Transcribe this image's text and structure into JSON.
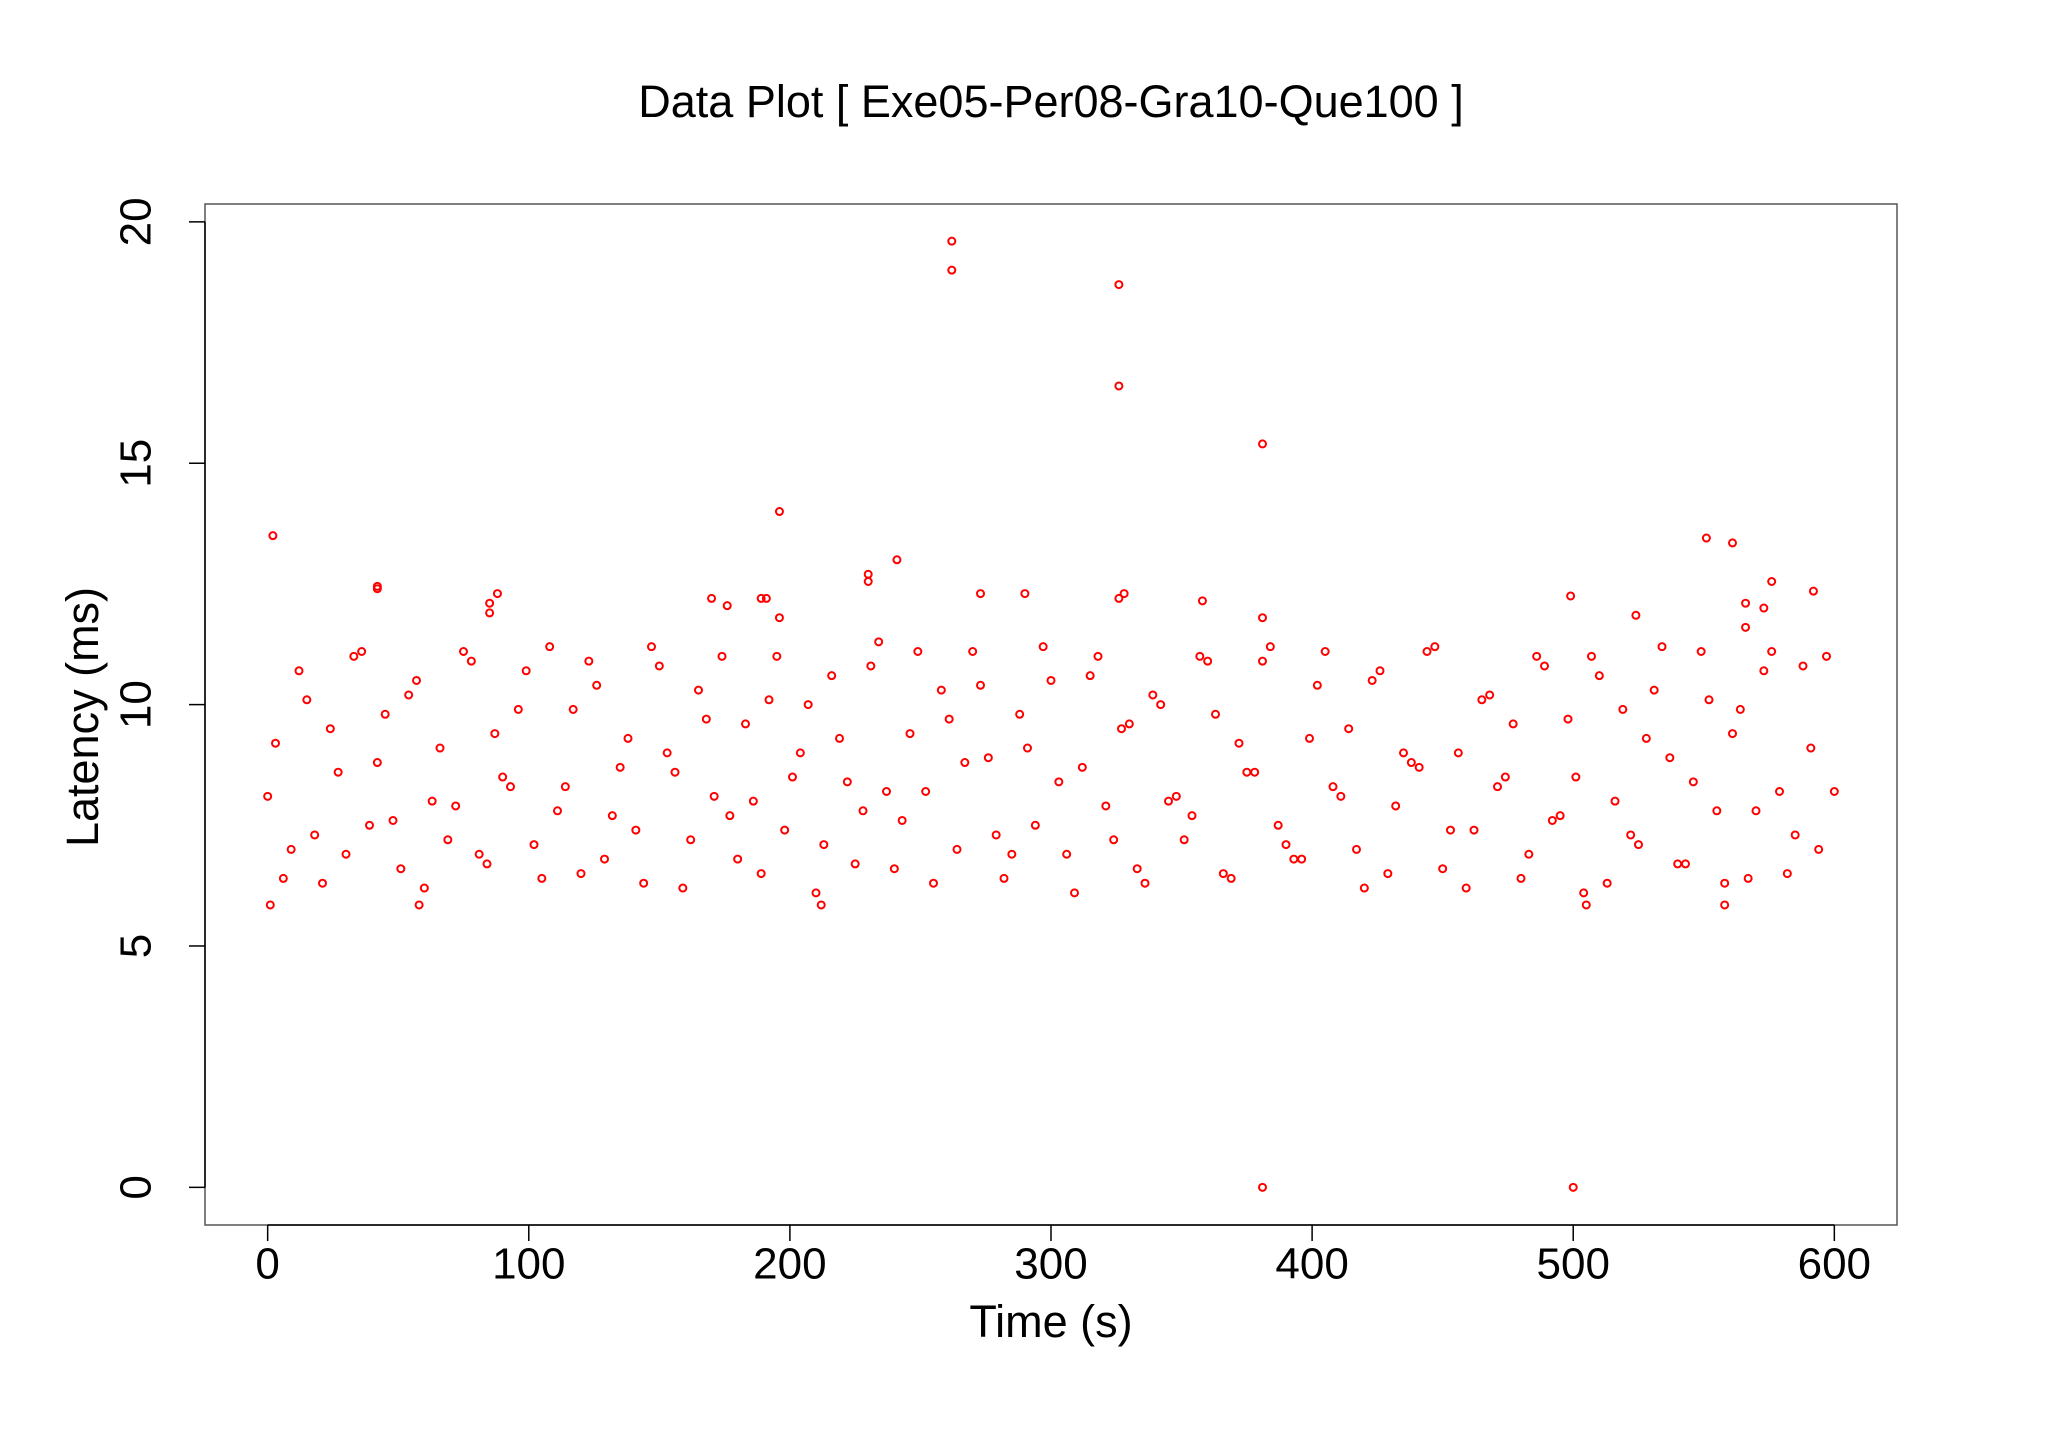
{
  "chart_data": {
    "type": "scatter",
    "title": "Data Plot [ Exe05-Per08-Gra10-Que100 ]",
    "x_label": "Time (s)",
    "y_label": "Latency (ms)",
    "color": "#ff0000",
    "xlim": [
      -24,
      624
    ],
    "ylim": [
      -0.78,
      20.37
    ],
    "xticks": [
      0,
      100,
      200,
      300,
      400,
      500,
      600
    ],
    "yticks": [
      0,
      5,
      10,
      15,
      20
    ],
    "x": [
      0,
      6,
      12,
      18,
      24,
      30,
      36,
      42,
      48,
      54,
      60,
      66,
      72,
      78,
      84,
      90,
      96,
      102,
      108,
      114,
      120,
      126,
      132,
      138,
      144,
      150,
      156,
      162,
      168,
      174,
      180,
      186,
      192,
      198,
      204,
      210,
      216,
      222,
      228,
      234,
      240,
      246,
      252,
      258,
      264,
      270,
      276,
      282,
      288,
      294,
      300,
      306,
      312,
      318,
      324,
      330,
      336,
      342,
      348,
      354,
      360,
      366,
      372,
      378,
      384,
      390,
      396,
      402,
      408,
      414,
      420,
      426,
      432,
      438,
      444,
      450,
      456,
      462,
      468,
      474,
      480,
      486,
      492,
      498,
      504,
      510,
      516,
      522,
      528,
      534,
      540,
      546,
      552,
      558,
      564,
      570,
      576,
      582,
      588,
      594,
      600,
      3,
      9,
      15,
      21,
      27,
      33,
      39,
      45,
      51,
      57,
      63,
      69,
      75,
      81,
      87,
      93,
      99,
      105,
      111,
      117,
      123,
      129,
      135,
      141,
      147,
      153,
      159,
      165,
      171,
      177,
      183,
      189,
      195,
      201,
      207,
      213,
      219,
      225,
      231,
      237,
      243,
      249,
      255,
      261,
      267,
      273,
      279,
      285,
      291,
      297,
      303,
      309,
      315,
      321,
      327,
      333,
      339,
      345,
      351,
      357,
      363,
      369,
      375,
      381,
      387,
      393,
      399,
      405,
      411,
      417,
      423,
      429,
      435,
      441,
      447,
      453,
      459,
      465,
      471,
      477,
      483,
      489,
      495,
      501,
      507,
      513,
      519,
      525,
      531,
      537,
      543,
      549,
      555,
      561,
      567,
      573,
      579,
      585,
      591,
      597,
      2,
      42,
      42,
      85,
      85,
      88,
      170,
      176,
      189,
      191,
      196,
      196,
      230,
      230,
      241,
      262,
      262,
      273,
      290,
      326,
      326,
      326,
      328,
      358,
      381,
      381,
      381,
      499,
      500,
      524,
      551,
      561,
      566,
      566,
      573,
      576,
      592,
      1,
      58,
      212,
      505,
      558
    ],
    "values": [
      8.1,
      6.4,
      10.7,
      7.3,
      9.5,
      6.9,
      11.1,
      8.8,
      7.6,
      10.2,
      6.2,
      9.1,
      7.9,
      10.9,
      6.7,
      8.5,
      9.9,
      7.1,
      11.2,
      8.3,
      6.5,
      10.4,
      7.7,
      9.3,
      6.3,
      10.8,
      8.6,
      7.2,
      9.7,
      11.0,
      6.8,
      8.0,
      10.1,
      7.4,
      9.0,
      6.1,
      10.6,
      8.4,
      7.8,
      11.3,
      6.6,
      9.4,
      8.2,
      10.3,
      7.0,
      11.1,
      8.9,
      6.4,
      9.8,
      7.5,
      10.5,
      6.9,
      8.7,
      11.0,
      7.2,
      9.6,
      6.3,
      10.0,
      8.1,
      7.7,
      10.9,
      6.5,
      9.2,
      8.6,
      11.2,
      7.1,
      6.8,
      10.4,
      8.3,
      9.5,
      6.2,
      10.7,
      7.9,
      8.8,
      11.1,
      6.6,
      9.0,
      7.4,
      10.2,
      8.5,
      6.4,
      11.0,
      7.6,
      9.7,
      6.1,
      10.6,
      8.0,
      7.3,
      9.3,
      11.2,
      6.7,
      8.4,
      10.1,
      6.3,
      9.9,
      7.8,
      11.1,
      6.5,
      10.8,
      7.0,
      8.2,
      9.2,
      7.0,
      10.1,
      6.3,
      8.6,
      11.0,
      7.5,
      9.8,
      6.6,
      10.5,
      8.0,
      7.2,
      11.1,
      6.9,
      9.4,
      8.3,
      10.7,
      6.4,
      7.8,
      9.9,
      10.9,
      6.8,
      8.7,
      7.4,
      11.2,
      9.0,
      6.2,
      10.3,
      8.1,
      7.7,
      9.6,
      6.5,
      11.0,
      8.5,
      10.0,
      7.1,
      9.3,
      6.7,
      10.8,
      8.2,
      7.6,
      11.1,
      6.3,
      9.7,
      8.8,
      10.4,
      7.3,
      6.9,
      9.1,
      11.2,
      8.4,
      6.1,
      10.6,
      7.9,
      9.5,
      6.6,
      10.2,
      8.0,
      7.2,
      11.0,
      9.8,
      6.4,
      8.6,
      10.9,
      7.5,
      6.8,
      9.3,
      11.1,
      8.1,
      7.0,
      10.5,
      6.5,
      9.0,
      8.7,
      11.2,
      7.4,
      6.2,
      10.1,
      8.3,
      9.6,
      6.9,
      10.8,
      7.7,
      8.5,
      11.0,
      6.3,
      9.9,
      7.1,
      10.3,
      8.9,
      6.7,
      11.1,
      7.8,
      9.4,
      6.4,
      10.7,
      8.2,
      7.3,
      9.1,
      11.0,
      13.5,
      12.4,
      12.45,
      12.1,
      11.9,
      12.3,
      12.2,
      12.05,
      12.2,
      12.2,
      14.0,
      11.8,
      12.7,
      12.55,
      13.0,
      19.6,
      19.0,
      12.3,
      12.3,
      18.7,
      16.6,
      12.2,
      12.3,
      12.15,
      15.4,
      11.8,
      0,
      12.25,
      0,
      11.85,
      13.45,
      13.35,
      12.1,
      11.6,
      12.0,
      12.55,
      12.35,
      5.85,
      5.85,
      5.85,
      5.85,
      5.85
    ]
  }
}
